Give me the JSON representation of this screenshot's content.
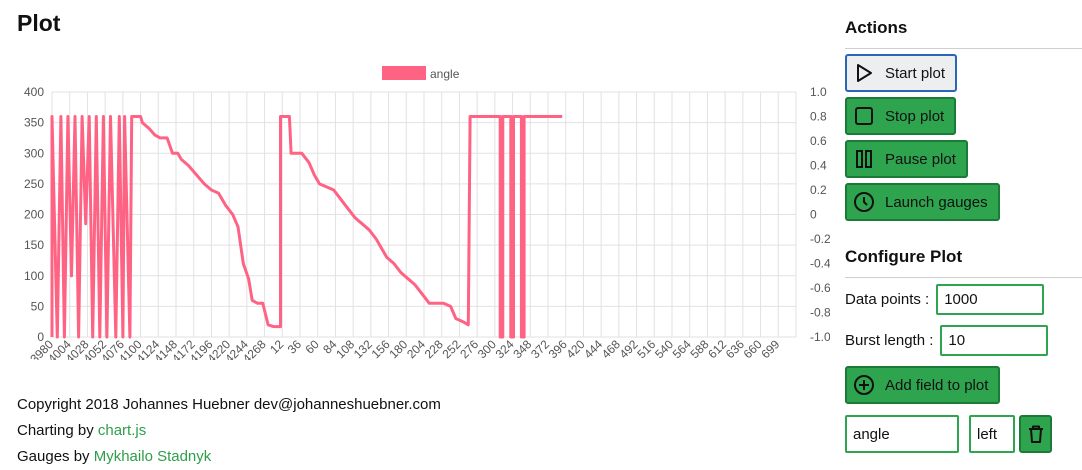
{
  "page": {
    "title": "Plot"
  },
  "footer": {
    "copyright": "Copyright 2018 Johannes Huebner dev@johanneshuebner.com",
    "charting_prefix": "Charting by ",
    "charting_link": "chart.js",
    "gauges_prefix": "Gauges by ",
    "gauges_link": "Mykhailo Stadnyk"
  },
  "sidebar": {
    "actions_heading": "Actions",
    "buttons": {
      "start": "Start plot",
      "stop": "Stop plot",
      "pause": "Pause plot",
      "launch": "Launch gauges"
    },
    "configure_heading": "Configure Plot",
    "data_points_label": "Data points :",
    "data_points_value": "1000",
    "burst_length_label": "Burst length :",
    "burst_length_value": "10",
    "add_field_label": "Add field to plot",
    "field_name_value": "angle",
    "field_axis_value": "left",
    "icons": {
      "start": "play-icon",
      "stop": "stop-icon",
      "pause": "pause-icon",
      "launch": "clock-icon",
      "add": "plus-circle-icon",
      "delete": "trash-icon"
    }
  },
  "colors": {
    "accent": "#2fa44f",
    "series": "#ff6384",
    "active_border": "#2a65b8"
  },
  "chart_data": {
    "type": "line",
    "legend": {
      "position": "top",
      "entries": [
        "angle"
      ]
    },
    "grid": true,
    "y_left": {
      "min": 0,
      "max": 400,
      "ticks": [
        "0",
        "50",
        "100",
        "150",
        "200",
        "250",
        "300",
        "350",
        "400"
      ]
    },
    "y_right": {
      "min": -1.0,
      "max": 1.0,
      "ticks": [
        "-1.0",
        "-0.8",
        "-0.6",
        "-0.4",
        "-0.2",
        "0",
        "0.2",
        "0.4",
        "0.6",
        "0.8",
        "1.0"
      ]
    },
    "x_tick_labels": [
      "3980",
      "4004",
      "4028",
      "4052",
      "4076",
      "4100",
      "4124",
      "4148",
      "4172",
      "4196",
      "4220",
      "4244",
      "4268",
      "12",
      "36",
      "60",
      "84",
      "108",
      "132",
      "156",
      "180",
      "204",
      "228",
      "252",
      "276",
      "300",
      "324",
      "348",
      "372",
      "396",
      "420",
      "444",
      "468",
      "492",
      "516",
      "540",
      "564",
      "588",
      "612",
      "636",
      "660",
      "699"
    ],
    "series": [
      {
        "name": "angle",
        "color": "#ff6384",
        "points": [
          [
            0,
            0
          ],
          [
            0,
            360
          ],
          [
            0.3,
            0
          ],
          [
            0.5,
            360
          ],
          [
            0.7,
            0
          ],
          [
            0.9,
            360
          ],
          [
            1.1,
            100
          ],
          [
            1.3,
            360
          ],
          [
            1.5,
            0
          ],
          [
            1.7,
            360
          ],
          [
            1.9,
            185
          ],
          [
            2.1,
            360
          ],
          [
            2.3,
            0
          ],
          [
            2.5,
            360
          ],
          [
            2.7,
            0
          ],
          [
            2.9,
            360
          ],
          [
            3.1,
            0
          ],
          [
            3.3,
            360
          ],
          [
            3.6,
            0
          ],
          [
            3.8,
            360
          ],
          [
            4.0,
            0
          ],
          [
            4.1,
            360
          ],
          [
            4.4,
            0
          ],
          [
            4.5,
            360
          ],
          [
            5.0,
            360
          ],
          [
            5.1,
            350
          ],
          [
            5.5,
            340
          ],
          [
            5.8,
            330
          ],
          [
            6.1,
            325
          ],
          [
            6.5,
            325
          ],
          [
            6.8,
            300
          ],
          [
            7.1,
            300
          ],
          [
            7.3,
            290
          ],
          [
            7.7,
            280
          ],
          [
            8.0,
            270
          ],
          [
            8.3,
            260
          ],
          [
            8.6,
            250
          ],
          [
            9.0,
            240
          ],
          [
            9.4,
            235
          ],
          [
            9.8,
            215
          ],
          [
            10.2,
            200
          ],
          [
            10.5,
            180
          ],
          [
            10.8,
            120
          ],
          [
            11.1,
            95
          ],
          [
            11.3,
            60
          ],
          [
            11.6,
            55
          ],
          [
            11.9,
            55
          ],
          [
            12.2,
            20
          ],
          [
            12.5,
            17
          ],
          [
            12.9,
            17
          ],
          [
            12.9,
            360
          ],
          [
            13.4,
            360
          ],
          [
            13.5,
            300
          ],
          [
            14.1,
            300
          ],
          [
            14.5,
            285
          ],
          [
            14.8,
            265
          ],
          [
            15.1,
            250
          ],
          [
            15.5,
            245
          ],
          [
            15.9,
            240
          ],
          [
            16.3,
            225
          ],
          [
            16.7,
            210
          ],
          [
            17.1,
            195
          ],
          [
            17.5,
            185
          ],
          [
            17.9,
            175
          ],
          [
            18.3,
            160
          ],
          [
            18.6,
            145
          ],
          [
            18.9,
            130
          ],
          [
            19.3,
            120
          ],
          [
            19.7,
            105
          ],
          [
            20.1,
            95
          ],
          [
            20.5,
            85
          ],
          [
            20.9,
            70
          ],
          [
            21.3,
            55
          ],
          [
            21.7,
            55
          ],
          [
            22.1,
            55
          ],
          [
            22.5,
            50
          ],
          [
            22.8,
            30
          ],
          [
            23.2,
            25
          ],
          [
            23.5,
            20
          ],
          [
            23.6,
            360
          ],
          [
            24.1,
            360
          ],
          [
            24.5,
            360
          ],
          [
            25.0,
            360
          ],
          [
            25.3,
            360
          ],
          [
            25.3,
            0
          ],
          [
            25.45,
            0
          ],
          [
            25.45,
            360
          ],
          [
            25.9,
            360
          ],
          [
            25.9,
            0
          ],
          [
            26.05,
            0
          ],
          [
            26.05,
            360
          ],
          [
            26.5,
            360
          ],
          [
            26.5,
            0
          ],
          [
            26.65,
            0
          ],
          [
            26.65,
            360
          ],
          [
            28.8,
            360
          ]
        ]
      }
    ]
  }
}
